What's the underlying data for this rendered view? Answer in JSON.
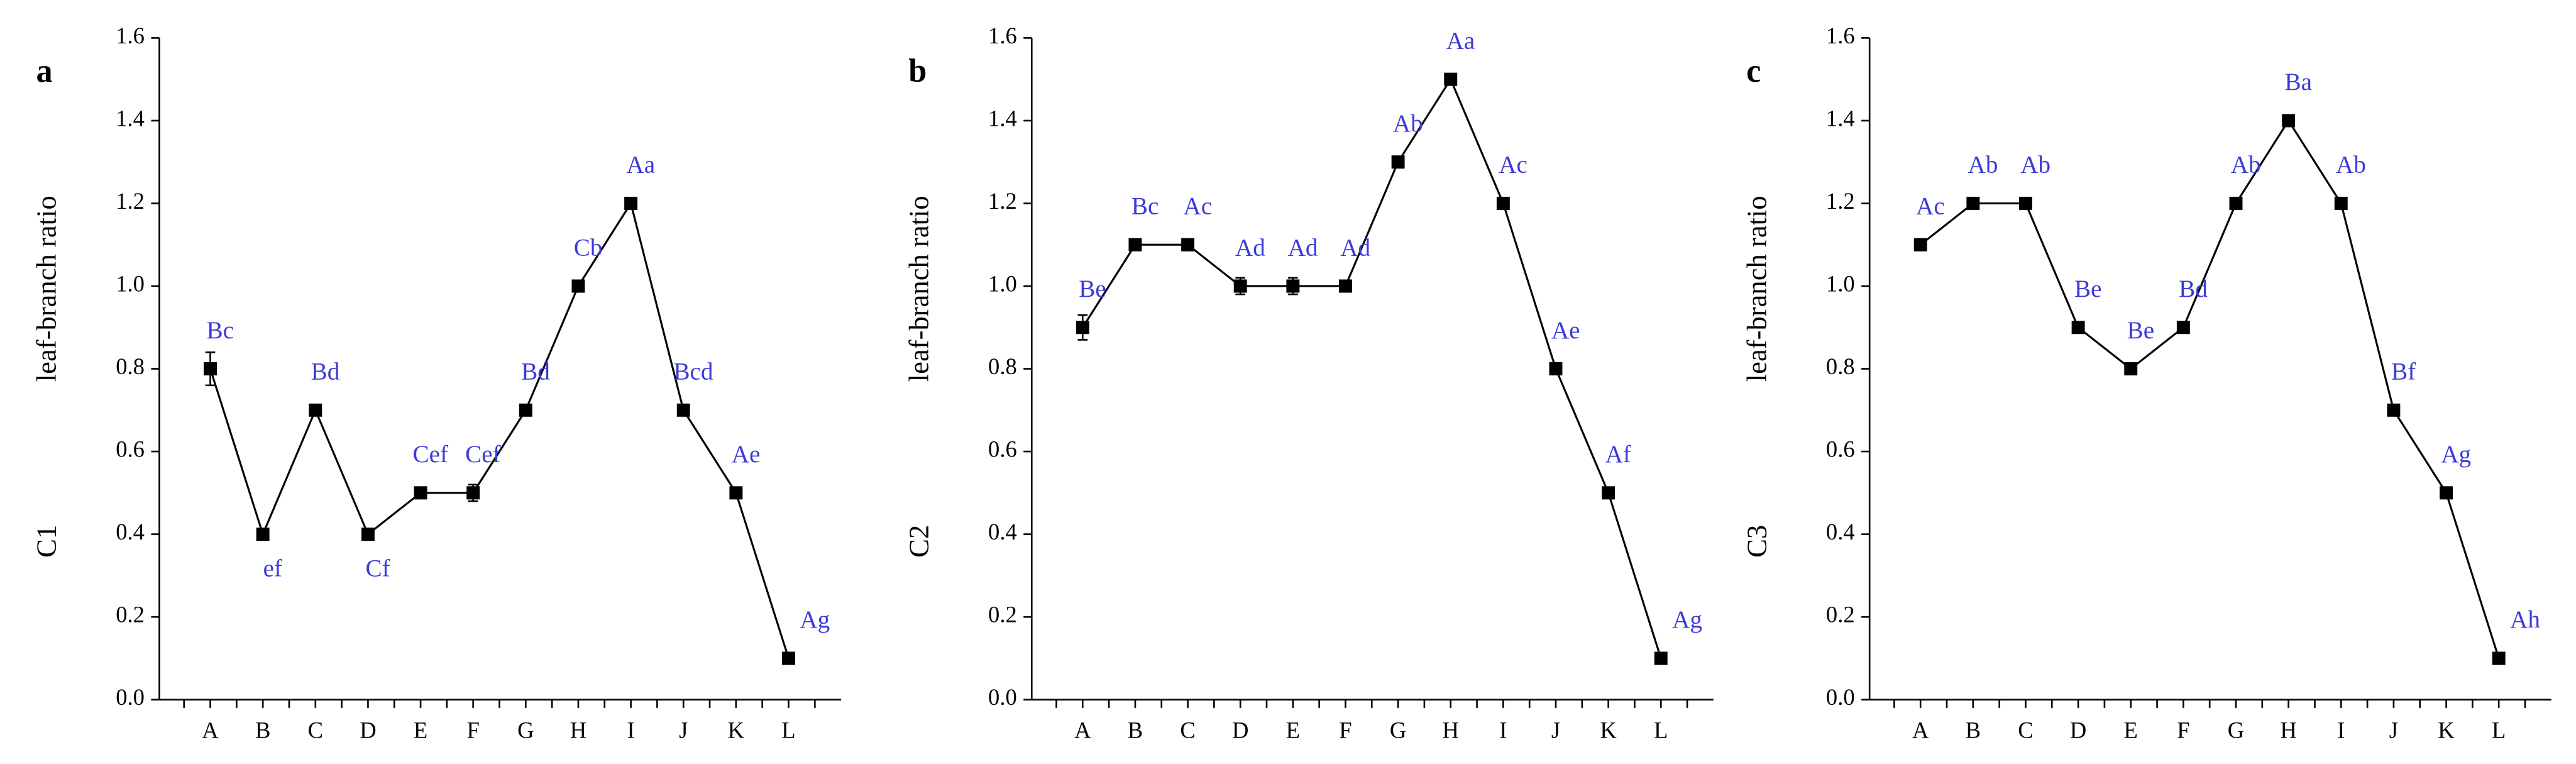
{
  "chart_data": [
    {
      "type": "line",
      "panel_label": "a",
      "y_label": "leaf-branch ratio",
      "y_label_sub": "C1",
      "categories": [
        "A",
        "B",
        "C",
        "D",
        "E",
        "F",
        "G",
        "H",
        "I",
        "J",
        "K",
        "L"
      ],
      "values": [
        0.8,
        0.4,
        0.7,
        0.4,
        0.5,
        0.5,
        0.7,
        1.0,
        1.2,
        0.7,
        0.5,
        0.1
      ],
      "errors": [
        0.04,
        0.01,
        0.01,
        0.01,
        0.01,
        0.02,
        0.01,
        0.01,
        0.01,
        0.01,
        0.01,
        0.01
      ],
      "annotations": [
        "Bc",
        "ef",
        "Bd",
        "Cf",
        "Cef",
        "Cef",
        "Bd",
        "Cb",
        "Aa",
        "Bcd",
        "Ae",
        "Ag"
      ],
      "color": "#000000",
      "annotation_color": "#3a3ad8",
      "ylim": [
        0,
        1.6
      ],
      "yticks": [
        {
          "value": 0,
          "label": "0.0"
        },
        0.2,
        0.4,
        0.6,
        0.8,
        {
          "value": 1,
          "label": "1.0"
        },
        1.2,
        1.4,
        1.6
      ]
    },
    {
      "type": "line",
      "panel_label": "b",
      "y_label": "leaf-branch ratio",
      "y_label_sub": "C2",
      "categories": [
        "A",
        "B",
        "C",
        "D",
        "E",
        "F",
        "G",
        "H",
        "I",
        "J",
        "K",
        "L"
      ],
      "values": [
        0.9,
        1.1,
        1.1,
        1.0,
        1.0,
        1.0,
        1.3,
        1.5,
        1.2,
        0.8,
        0.5,
        0.1
      ],
      "errors": [
        0.03,
        0.01,
        0.01,
        0.02,
        0.02,
        0.01,
        0.01,
        0.01,
        0.01,
        0.01,
        0.01,
        0.01
      ],
      "annotations": [
        "Be",
        "Bc",
        "Ac",
        "Ad",
        "Ad",
        "Ad",
        "Ab",
        "Aa",
        "Ac",
        "Ae",
        "Af",
        "Ag"
      ],
      "color": "#000000",
      "annotation_color": "#3a3ad8",
      "ylim": [
        0,
        1.6
      ],
      "yticks": [
        {
          "value": 0,
          "label": "0.0"
        },
        0.2,
        0.4,
        0.6,
        0.8,
        {
          "value": 1,
          "label": "1.0"
        },
        1.2,
        1.4,
        1.6
      ]
    },
    {
      "type": "line",
      "panel_label": "c",
      "y_label": "leaf-branch ratio",
      "y_label_sub": "C3",
      "categories": [
        "A",
        "B",
        "C",
        "D",
        "E",
        "F",
        "G",
        "H",
        "I",
        "J",
        "K",
        "L"
      ],
      "values": [
        1.1,
        1.2,
        1.2,
        0.9,
        0.8,
        0.9,
        1.2,
        1.4,
        1.2,
        0.7,
        0.5,
        0.1
      ],
      "errors": [
        0.01,
        0.01,
        0.01,
        0.01,
        0.01,
        0.01,
        0.01,
        0.01,
        0.01,
        0.01,
        0.01,
        0.01
      ],
      "annotations": [
        "Ac",
        "Ab",
        "Ab",
        "Be",
        "Be",
        "Bd",
        "Ab",
        "Ba",
        "Ab",
        "Bf",
        "Ag",
        "Ah"
      ],
      "color": "#000000",
      "annotation_color": "#3a3ad8",
      "ylim": [
        0,
        1.6
      ],
      "yticks": [
        {
          "value": 0,
          "label": "0.0"
        },
        0.2,
        0.4,
        0.6,
        0.8,
        {
          "value": 1,
          "label": "1.0"
        },
        1.2,
        1.4,
        1.6
      ]
    }
  ]
}
